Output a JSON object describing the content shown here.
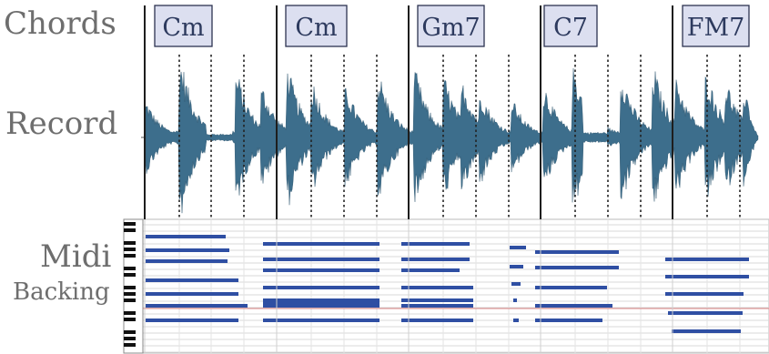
{
  "labels": {
    "chords": "Chords",
    "record": "Record",
    "midi": "Midi",
    "backing": "Backing"
  },
  "chords": [
    "Cm",
    "Cm",
    "Gm7",
    "C7",
    "FM7"
  ],
  "colors": {
    "waveform": "#3d6e8c",
    "waveform_dark": "#28506a",
    "midi_note": "#2f4fa3",
    "chord_box_fill": "#dcdff0",
    "chord_box_stroke": "#2c3350",
    "bar_line": "#1e1e1e",
    "playhead_line": "#d98080",
    "grid_line": "#d9d9d9"
  },
  "icons": [
    "piano-keyboard-icon"
  ]
}
